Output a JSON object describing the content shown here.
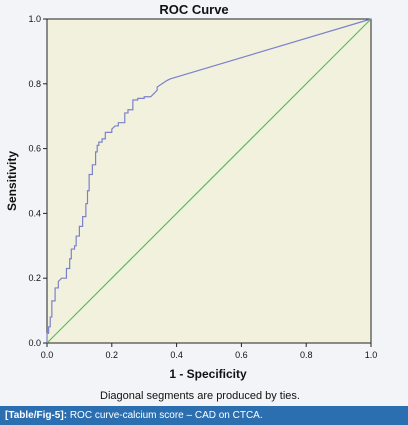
{
  "chart_data": {
    "type": "line",
    "title": "ROC Curve",
    "xlabel": "1 - Specificity",
    "ylabel": "Sensitivity",
    "footnote": "Diagonal segments are produced by ties.",
    "xlim": [
      0,
      1
    ],
    "ylim": [
      0,
      1
    ],
    "xticks": [
      "0.0",
      "0.2",
      "0.4",
      "0.6",
      "0.8",
      "1.0"
    ],
    "yticks": [
      "0.0",
      "0.2",
      "0.4",
      "0.6",
      "0.8",
      "1.0"
    ],
    "grid": false,
    "series": [
      {
        "color": "#7b82c9",
        "x": [
          0.0,
          0.0,
          0.005,
          0.005,
          0.01,
          0.01,
          0.015,
          0.015,
          0.025,
          0.025,
          0.035,
          0.035,
          0.045,
          0.06,
          0.06,
          0.07,
          0.07,
          0.075,
          0.075,
          0.085,
          0.085,
          0.09,
          0.09,
          0.1,
          0.1,
          0.11,
          0.11,
          0.12,
          0.12,
          0.125,
          0.125,
          0.13,
          0.13,
          0.14,
          0.14,
          0.15,
          0.15,
          0.155,
          0.155,
          0.16,
          0.16,
          0.17,
          0.17,
          0.18,
          0.18,
          0.2,
          0.2,
          0.21,
          0.22,
          0.22,
          0.24,
          0.24,
          0.25,
          0.25,
          0.265,
          0.265,
          0.28,
          0.28,
          0.3,
          0.3,
          0.32,
          0.33,
          0.34,
          0.34,
          0.355,
          0.37,
          0.38,
          1.0
        ],
        "y": [
          0.0,
          0.03,
          0.03,
          0.05,
          0.05,
          0.08,
          0.08,
          0.13,
          0.13,
          0.17,
          0.17,
          0.19,
          0.2,
          0.2,
          0.23,
          0.23,
          0.26,
          0.26,
          0.29,
          0.29,
          0.3,
          0.3,
          0.33,
          0.33,
          0.36,
          0.36,
          0.39,
          0.39,
          0.43,
          0.43,
          0.47,
          0.47,
          0.52,
          0.52,
          0.55,
          0.55,
          0.59,
          0.59,
          0.61,
          0.61,
          0.62,
          0.62,
          0.63,
          0.63,
          0.65,
          0.65,
          0.66,
          0.67,
          0.67,
          0.68,
          0.68,
          0.71,
          0.71,
          0.72,
          0.72,
          0.75,
          0.75,
          0.755,
          0.755,
          0.76,
          0.76,
          0.77,
          0.78,
          0.79,
          0.8,
          0.81,
          0.815,
          1.0
        ]
      },
      {
        "color": "#55c05a",
        "x": [
          0,
          1
        ],
        "y": [
          0,
          1
        ]
      }
    ]
  },
  "caption": {
    "label": "[Table/Fig-5]:",
    "text": "ROC curve-calcium score – CAD on CTCA."
  }
}
